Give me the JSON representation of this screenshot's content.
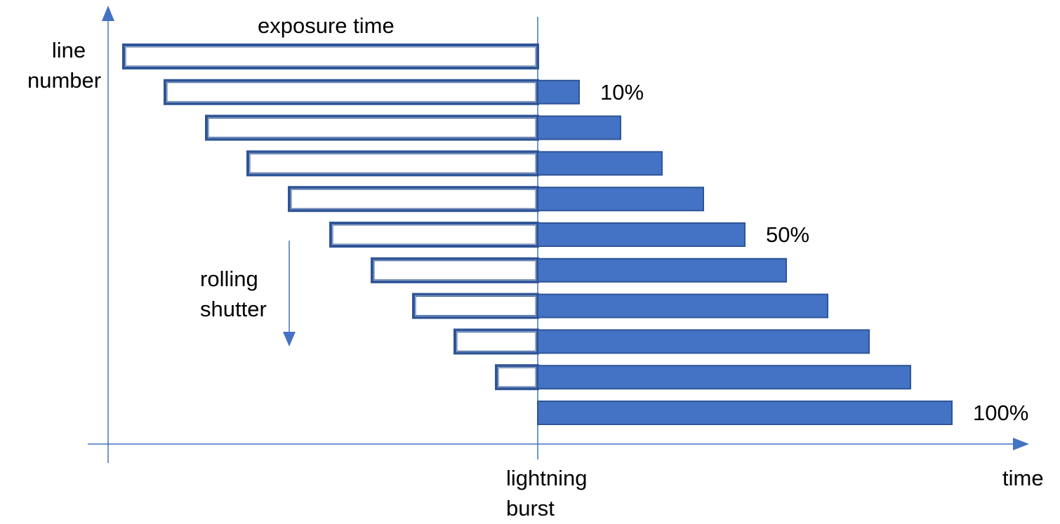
{
  "labels": {
    "y_axis": [
      "line",
      "number"
    ],
    "x_axis": "time",
    "exposure": "exposure time",
    "rolling_shutter": [
      "rolling",
      "shutter"
    ],
    "lightning_burst": [
      "lightning",
      "burst"
    ]
  },
  "rows": [
    {
      "exposed_before_burst": 1.0,
      "exposed_after_burst": 0.0,
      "percent_label": ""
    },
    {
      "exposed_before_burst": 0.9,
      "exposed_after_burst": 0.1,
      "percent_label": "10%"
    },
    {
      "exposed_before_burst": 0.8,
      "exposed_after_burst": 0.2,
      "percent_label": ""
    },
    {
      "exposed_before_burst": 0.7,
      "exposed_after_burst": 0.3,
      "percent_label": ""
    },
    {
      "exposed_before_burst": 0.6,
      "exposed_after_burst": 0.4,
      "percent_label": ""
    },
    {
      "exposed_before_burst": 0.5,
      "exposed_after_burst": 0.5,
      "percent_label": "50%"
    },
    {
      "exposed_before_burst": 0.4,
      "exposed_after_burst": 0.6,
      "percent_label": ""
    },
    {
      "exposed_before_burst": 0.3,
      "exposed_after_burst": 0.7,
      "percent_label": ""
    },
    {
      "exposed_before_burst": 0.2,
      "exposed_after_burst": 0.8,
      "percent_label": ""
    },
    {
      "exposed_before_burst": 0.1,
      "exposed_after_burst": 0.9,
      "percent_label": ""
    },
    {
      "exposed_before_burst": 0.0,
      "exposed_after_burst": 1.0,
      "percent_label": "100%"
    }
  ],
  "colors": {
    "bar_fill": "#4472C4",
    "bar_border": "#2F5597",
    "axis": "#4472C4"
  }
}
